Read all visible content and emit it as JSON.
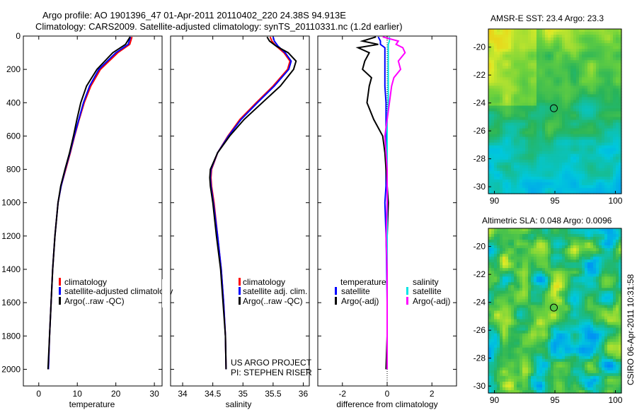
{
  "header": {
    "line1": "Argo profile: AO 1901396_47 01-Apr-2011 20110402_220 24.38S 94.913E",
    "line2": "Climatology: CARS2009. Satellite-adjusted climatology: synTS_20110331.nc (1.2d earlier)"
  },
  "footer_stamp": "CSIRO 06-Apr-2011 10:31:58",
  "colors": {
    "climatology": "#ff0000",
    "satellite": "#0000ff",
    "argo": "#000000",
    "salinity_sat": "#00e5e5",
    "salinity_argo": "#ff00ff"
  },
  "chart_data": [
    {
      "id": "temperature",
      "type": "line",
      "xlabel": "temperature",
      "ylabel": "",
      "xlim": [
        -4,
        32
      ],
      "ylim": [
        2100,
        0
      ],
      "xticks": [
        "0",
        "10",
        "20",
        "30"
      ],
      "xtick_values": [
        0,
        10,
        20,
        30
      ],
      "yticks": [
        "0",
        "200",
        "400",
        "600",
        "800",
        "1000",
        "1200",
        "1400",
        "1600",
        "1800",
        "2000"
      ],
      "ytick_values": [
        0,
        200,
        400,
        600,
        800,
        1000,
        1200,
        1400,
        1600,
        1800,
        2000
      ],
      "depth": [
        5,
        50,
        100,
        200,
        300,
        400,
        500,
        600,
        700,
        800,
        900,
        1000,
        1200,
        1400,
        1600,
        1800,
        2000
      ],
      "series": [
        {
          "name": "climatology",
          "color": "#ff0000",
          "values": [
            24.2,
            23.6,
            20.5,
            16.0,
            13.5,
            11.8,
            10.5,
            9.3,
            8.2,
            7.0,
            5.8,
            5.0,
            4.2,
            3.6,
            3.2,
            2.8,
            2.5
          ]
        },
        {
          "name": "satellite-adjusted climatology",
          "color": "#0000ff",
          "values": [
            23.8,
            23.2,
            20.0,
            15.6,
            13.2,
            11.6,
            10.4,
            9.2,
            8.1,
            6.9,
            5.8,
            5.0,
            4.2,
            3.6,
            3.2,
            2.8,
            2.5
          ]
        },
        {
          "name": "Argo(..raw -QC)",
          "color": "#000000",
          "values": [
            23.7,
            22.5,
            19.2,
            15.1,
            12.4,
            10.9,
            9.9,
            9.0,
            8.0,
            6.8,
            5.7,
            5.0,
            4.2,
            3.6,
            3.2,
            2.8,
            2.4
          ]
        }
      ],
      "legend": [
        "climatology",
        "satellite-adjusted climatology",
        "Argo(..raw -QC)"
      ]
    },
    {
      "id": "salinity",
      "type": "line",
      "xlabel": "salinity",
      "xlim": [
        33.8,
        36.1
      ],
      "ylim": [
        2100,
        0
      ],
      "xticks": [
        "34",
        "34.5",
        "35",
        "35.5",
        "36"
      ],
      "xtick_values": [
        34,
        34.5,
        35,
        35.5,
        36
      ],
      "depth": [
        5,
        30,
        60,
        100,
        150,
        200,
        300,
        400,
        500,
        600,
        700,
        800,
        850,
        900,
        1000,
        1200,
        1400,
        1600,
        1800,
        2000
      ],
      "series": [
        {
          "name": "climatology",
          "color": "#ff0000",
          "values": [
            35.45,
            35.48,
            35.55,
            35.68,
            35.78,
            35.74,
            35.5,
            35.22,
            34.95,
            34.75,
            34.58,
            34.48,
            34.47,
            34.48,
            34.52,
            34.58,
            34.64,
            34.68,
            34.71,
            34.72
          ]
        },
        {
          "name": "satellite adj. clim.",
          "color": "#0000ff",
          "values": [
            35.5,
            35.52,
            35.58,
            35.7,
            35.8,
            35.76,
            35.52,
            35.24,
            34.97,
            34.76,
            34.58,
            34.47,
            34.46,
            34.47,
            34.51,
            34.58,
            34.64,
            34.68,
            34.71,
            34.72
          ]
        },
        {
          "name": "Argo(..raw -QC)",
          "color": "#000000",
          "values": [
            35.4,
            35.44,
            35.55,
            35.75,
            35.88,
            35.84,
            35.62,
            35.32,
            35.02,
            34.78,
            34.58,
            34.46,
            34.45,
            34.46,
            34.5,
            34.56,
            34.63,
            34.67,
            34.71,
            34.72
          ]
        }
      ],
      "legend": [
        "climatology",
        "satellite adj. clim.",
        "Argo(..raw -QC)"
      ],
      "annotation": [
        "US ARGO PROJECT",
        "PI: STEPHEN RISER"
      ]
    },
    {
      "id": "difference",
      "type": "line",
      "xlabel": "difference from climatology",
      "xlim": [
        -3.1,
        3.1
      ],
      "ylim": [
        2100,
        0
      ],
      "xticks": [
        "-2",
        "0",
        "2"
      ],
      "xtick_values": [
        -2,
        0,
        2
      ],
      "depth": [
        5,
        30,
        50,
        70,
        100,
        150,
        200,
        250,
        300,
        400,
        500,
        600,
        700,
        800,
        900,
        1000,
        1200,
        1400,
        1600,
        1800,
        2000
      ],
      "series": [
        {
          "name": "temperature satellite",
          "color": "#0000ff",
          "values": [
            -0.4,
            -0.3,
            -0.3,
            -0.1,
            -0.1,
            -0.1,
            -0.1,
            -0.1,
            -0.1,
            -0.05,
            -0.05,
            -0.05,
            -0.05,
            -0.05,
            -0.05,
            -0.1,
            -0.05,
            -0.02,
            0.0,
            0.0,
            0.0
          ]
        },
        {
          "name": "temperature Argo(-adj)",
          "color": "#000000",
          "values": [
            -0.5,
            -1.1,
            -0.4,
            -1.3,
            -0.8,
            -1.0,
            -1.1,
            -0.7,
            -0.8,
            -0.9,
            -0.6,
            -0.2,
            -0.1,
            -0.05,
            0.0,
            0.05,
            0.0,
            0.0,
            0.0,
            0.0,
            -0.05
          ]
        },
        {
          "name": "salinity satellite",
          "color": "#00e5e5",
          "values": [
            0.1,
            0.1,
            0.05,
            0.05,
            0.05,
            0.05,
            0.05,
            0.05,
            0.05,
            0.05,
            0.0,
            0.0,
            0.0,
            0.0,
            0.0,
            0.0,
            0.0,
            0.0,
            0.0,
            0.0,
            0.0
          ]
        },
        {
          "name": "salinity Argo(-adj)",
          "color": "#ff00ff",
          "values": [
            -0.2,
            0.5,
            0.4,
            0.7,
            0.8,
            0.5,
            0.6,
            0.3,
            0.2,
            0.1,
            0.0,
            -0.1,
            -0.05,
            0.0,
            0.0,
            0.0,
            -0.05,
            0.0,
            0.0,
            0.0,
            0.0
          ]
        }
      ],
      "legend_titles": [
        "temperature",
        "salinity"
      ],
      "legend": [
        "satellite",
        "Argo(-adj)",
        "satellite",
        "Argo(-adj)"
      ]
    },
    {
      "id": "sst_map",
      "type": "heatmap",
      "title": "AMSR-E SST: 23.4  Argo: 23.3",
      "xlim": [
        89.5,
        100.5
      ],
      "ylim": [
        -30.5,
        -18.7
      ],
      "xticks": [
        "90",
        "95",
        "100"
      ],
      "xtick_values": [
        90,
        95,
        100
      ],
      "yticks": [
        "-20",
        "-22",
        "-24",
        "-26",
        "-28",
        "-30"
      ],
      "ytick_values": [
        -20,
        -22,
        -24,
        -26,
        -28,
        -30
      ],
      "marker": {
        "lon": 94.913,
        "lat": -24.38
      }
    },
    {
      "id": "sla_map",
      "type": "heatmap",
      "title": "Altimetric SLA: 0.048  Argo: 0.0096",
      "xlim": [
        89.5,
        100.5
      ],
      "ylim": [
        -30.5,
        -18.7
      ],
      "xticks": [
        "90",
        "95",
        "100"
      ],
      "xtick_values": [
        90,
        95,
        100
      ],
      "yticks": [
        "-20",
        "-22",
        "-24",
        "-26",
        "-28",
        "-30"
      ],
      "ytick_values": [
        -20,
        -22,
        -24,
        -26,
        -28,
        -30
      ],
      "marker": {
        "lon": 94.913,
        "lat": -24.38
      }
    }
  ]
}
